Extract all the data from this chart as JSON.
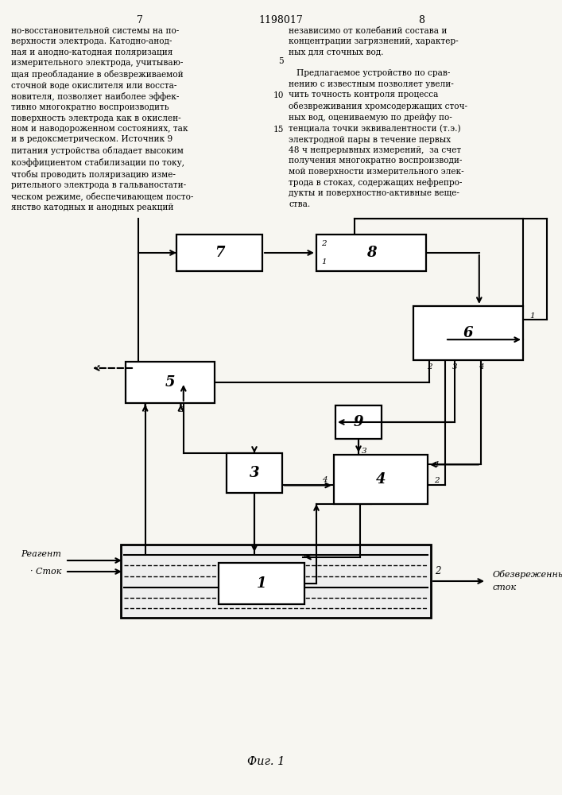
{
  "title": "1198017",
  "page_left": "7",
  "page_right": "8",
  "fig_caption": "Фиг. 1",
  "text_left": "но-восстановительной системы на по-\nверхности электрода. Катодно-анод-\nная и анодно-катодная поляризация\nизмерительного электрода, учитываю-\nщая преобладание в обезвреживаемой\nсточной воде окислителя или восста-\nновителя, позволяет наиболее эффек-\nтивно многократно воспроизводить\nповерхность электрода как в окислен-\nном и наводороженном состояниях, так\nи в редоксметрическом. Источник 9\nпитания устройства обладает высоким\nкоэффициентом стабилизации по току,\nчтобы проводить поляризацию изме-\nрительного электрода в гальваностати-\nческом режиме, обеспечивающем посто-\nянство катодных и анодных реакций",
  "text_right": "независимо от колебаний состава и\nконцентрации загрязнений, характер-\nных для сточных вод.\n\n   Предлагаемое устройство по срав-\nнению с известным позволяет увели-\nчить точность контроля процесса\nобезвреживания хромсодержащих сточ-\nных вод, оцениваемую по дрейфу по-\nтенциала точки эквивалентности (т.э.)\nэлектродной пары в течение первых\n48 ч непрерывных измерений,  за счет\nполучения многократно воспроизводи-\nмой поверхности измерительного элек-\nтрода в стоках, содержащих нефрепро-\nдукты и поверхностно-активные веще-\nства.",
  "bg_color": "#f7f6f1"
}
